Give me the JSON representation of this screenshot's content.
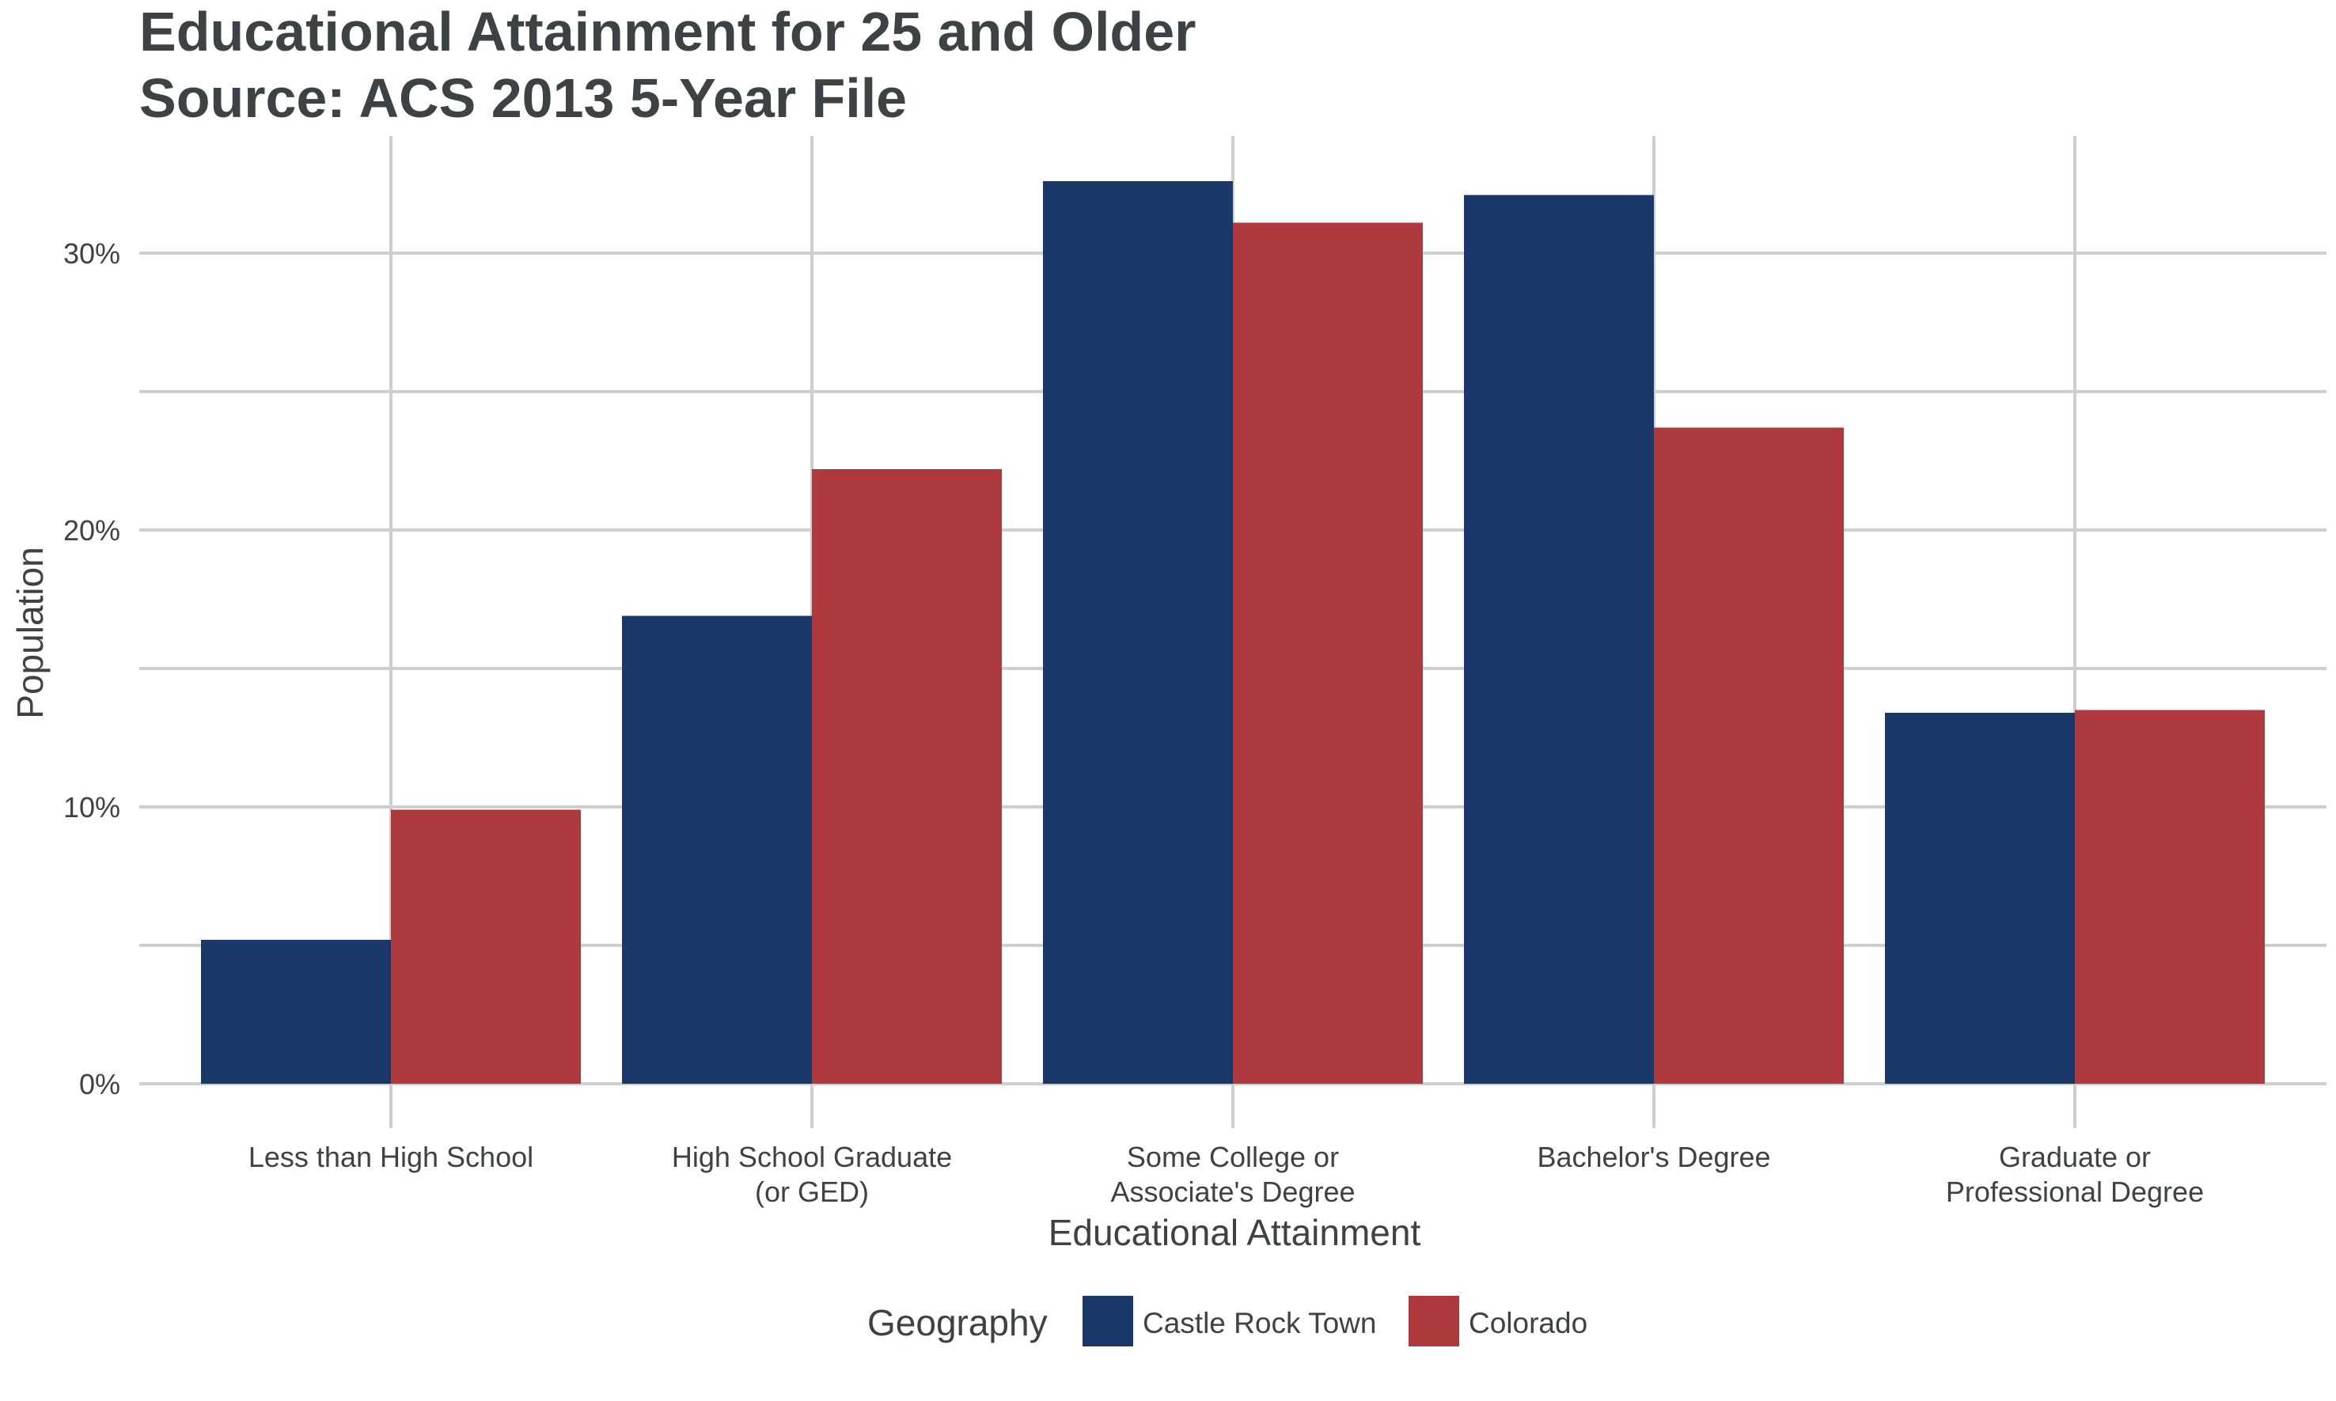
{
  "chart_data": {
    "type": "bar",
    "title": "Educational Attainment for 25 and Older",
    "subtitle": "Source: ACS 2013 5-Year File",
    "xlabel": "Educational Attainment",
    "ylabel": "Population",
    "categories": [
      [
        "Less than High School"
      ],
      [
        "High School Graduate",
        "(or GED)"
      ],
      [
        "Some College or",
        "Associate's Degree"
      ],
      [
        "Bachelor's Degree"
      ],
      [
        "Graduate or",
        "Professional Degree"
      ]
    ],
    "series": [
      {
        "name": "Castle Rock Town",
        "color": "#1b386b",
        "values": [
          5.2,
          16.9,
          32.6,
          32.1,
          13.4
        ]
      },
      {
        "name": "Colorado",
        "color": "#af3a3e",
        "values": [
          9.9,
          22.2,
          31.1,
          23.7,
          13.5
        ]
      }
    ],
    "ylim": [
      0,
      34
    ],
    "yticks": [
      0,
      10,
      20,
      30
    ],
    "ytick_labels": [
      "0%",
      "10%",
      "20%",
      "30%"
    ],
    "grid": true,
    "legend": {
      "title": "Geography",
      "position": "bottom"
    }
  }
}
